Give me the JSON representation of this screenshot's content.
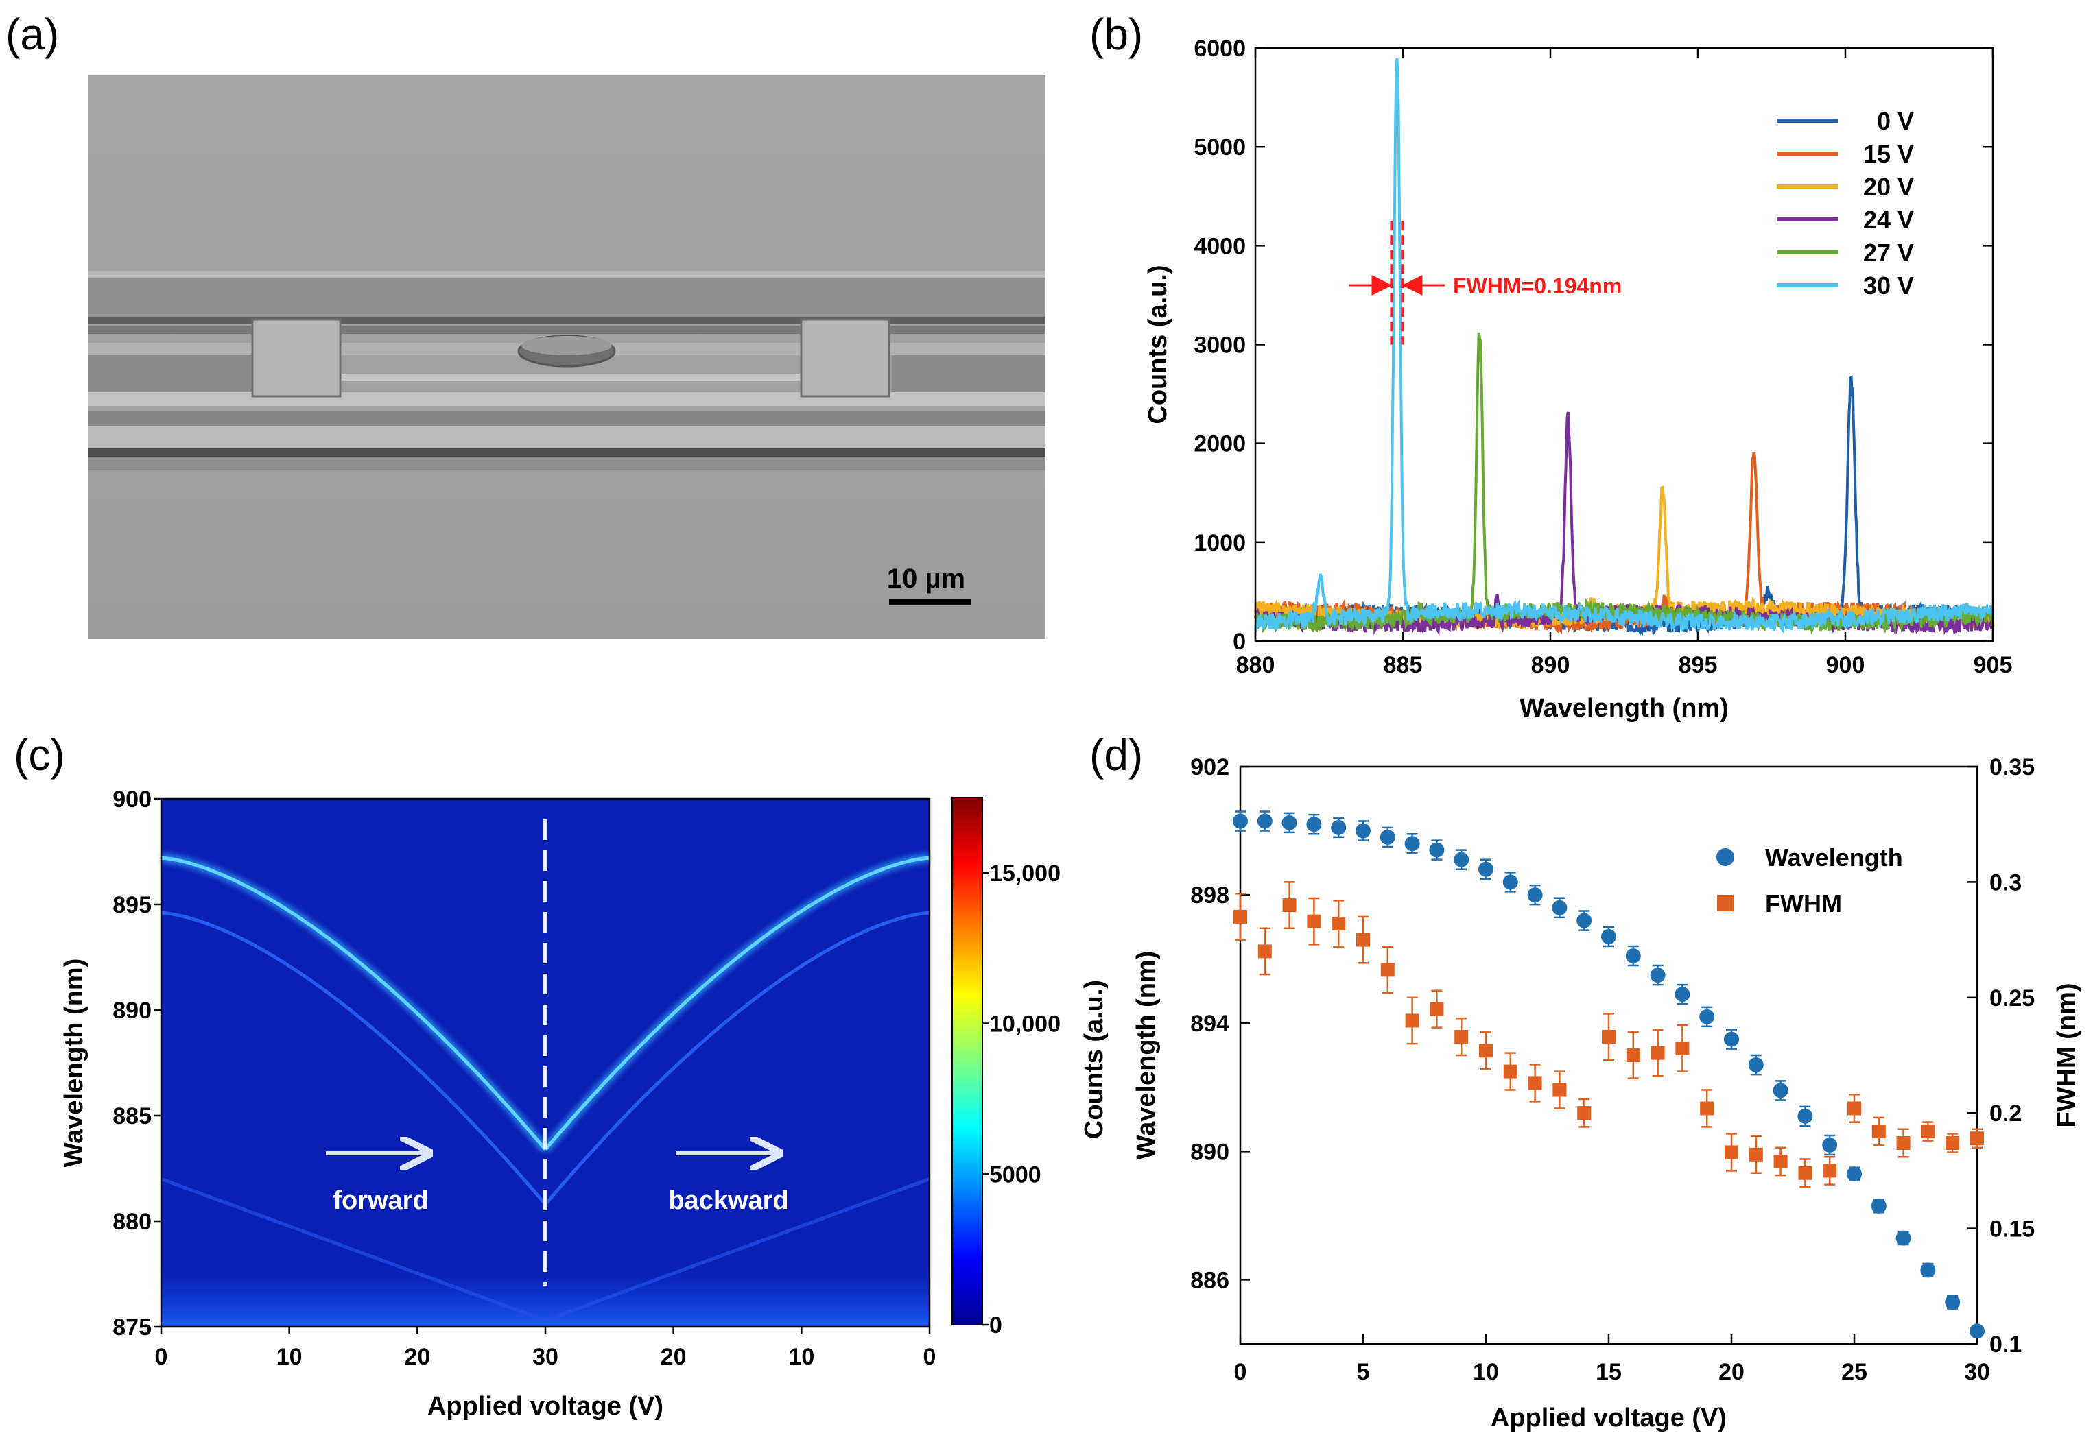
{
  "panels": {
    "a": {
      "label": "(a)",
      "scale_bar": "10 µm",
      "image": "sem-micrograph"
    },
    "b": {
      "label": "(b)"
    },
    "c": {
      "label": "(c)"
    },
    "d": {
      "label": "(d)"
    }
  },
  "chart_data": [
    {
      "id": "b",
      "type": "line",
      "title": "",
      "xlabel": "Wavelength (nm)",
      "ylabel": "Counts (a.u.)",
      "xlim": [
        880,
        905
      ],
      "ylim": [
        0,
        6000
      ],
      "xticks": [
        880,
        885,
        890,
        895,
        900,
        905
      ],
      "yticks": [
        0,
        1000,
        2000,
        3000,
        4000,
        5000,
        6000
      ],
      "legend_position": "top-right",
      "annotation": "FWHM=0.194nm",
      "series": [
        {
          "name": "0 V",
          "color": "#1f5fa8",
          "baseline": 230,
          "peaks": [
            [
              900.2,
              2600,
              0.12
            ],
            [
              897.4,
              520,
              0.12
            ]
          ]
        },
        {
          "name": "15 V",
          "color": "#e06020",
          "baseline": 250,
          "peaks": [
            [
              896.9,
              1930,
              0.11
            ],
            [
              893.9,
              420,
              0.1
            ]
          ]
        },
        {
          "name": "20 V",
          "color": "#f2b01e",
          "baseline": 270,
          "peaks": [
            [
              893.8,
              1520,
              0.1
            ],
            [
              891.4,
              420,
              0.08
            ],
            [
              882.8,
              260,
              0.2
            ]
          ]
        },
        {
          "name": "24 V",
          "color": "#7a2f9a",
          "baseline": 230,
          "peaks": [
            [
              890.6,
              2230,
              0.1
            ],
            [
              888.2,
              430,
              0.06
            ]
          ]
        },
        {
          "name": "27 V",
          "color": "#66aa33",
          "baseline": 250,
          "peaks": [
            [
              887.6,
              3100,
              0.1
            ],
            [
              885.6,
              320,
              0.15
            ]
          ]
        },
        {
          "name": "30 V",
          "color": "#4cc3f0",
          "baseline": 250,
          "peaks": [
            [
              884.8,
              5930,
              0.1
            ],
            [
              882.2,
              620,
              0.12
            ]
          ]
        }
      ]
    },
    {
      "id": "c",
      "type": "heatmap",
      "xlabel": "Applied voltage (V)",
      "ylabel": "Wavelength (nm)",
      "x_tick_labels": [
        "0",
        "10",
        "20",
        "30",
        "20",
        "10",
        "0"
      ],
      "ylim": [
        875,
        900
      ],
      "yticks": [
        875,
        880,
        885,
        890,
        895,
        900
      ],
      "colorbar_ticks": [
        0,
        5000,
        10000,
        15000
      ],
      "colorbar_tick_labels": [
        "0",
        "5000",
        "10,000",
        "15,000"
      ],
      "colorbar_max": 17500,
      "ridge_wavelength_at_0V": 897.2,
      "ridge_wavelength_at_30V": 883.4,
      "annotations": [
        "forward",
        "backward"
      ]
    },
    {
      "id": "d",
      "type": "scatter",
      "xlabel": "Applied voltage (V)",
      "ylabel_left": "Wavelength (nm)",
      "ylabel_left_prefix": "Counts (a.u.)",
      "ylabel_right": "FWHM (nm)",
      "xlim": [
        0,
        30
      ],
      "xticks": [
        0,
        5,
        10,
        15,
        20,
        25,
        30
      ],
      "ylim_left": [
        884,
        902
      ],
      "yticks_left": [
        886,
        890,
        894,
        898,
        902
      ],
      "ylim_right": [
        0.1,
        0.35
      ],
      "yticks_right": [
        0.1,
        0.15,
        0.2,
        0.25,
        0.3,
        0.35
      ],
      "yticks_right_labels": [
        "0.1",
        "0.15",
        "0.2",
        "0.25",
        "0.3",
        "0.35"
      ],
      "legend_position": "top-right",
      "x": [
        0,
        1,
        2,
        3,
        4,
        5,
        6,
        7,
        8,
        9,
        10,
        11,
        12,
        13,
        14,
        15,
        16,
        17,
        18,
        19,
        20,
        21,
        22,
        23,
        24,
        25,
        26,
        27,
        28,
        29,
        30
      ],
      "series": [
        {
          "name": "Wavelength",
          "axis": "left",
          "color": "#1f6fb0",
          "marker": "circle",
          "values": [
            900.3,
            900.3,
            900.25,
            900.2,
            900.1,
            900.0,
            899.8,
            899.6,
            899.4,
            899.1,
            898.8,
            898.4,
            898.0,
            897.6,
            897.2,
            896.7,
            896.1,
            895.5,
            894.9,
            894.2,
            893.5,
            892.7,
            891.9,
            891.1,
            890.2,
            889.3,
            888.3,
            887.3,
            886.3,
            885.3,
            884.4
          ],
          "errors": [
            0.3,
            0.3,
            0.3,
            0.3,
            0.3,
            0.3,
            0.3,
            0.3,
            0.3,
            0.3,
            0.3,
            0.3,
            0.3,
            0.3,
            0.3,
            0.3,
            0.3,
            0.3,
            0.3,
            0.3,
            0.3,
            0.3,
            0.3,
            0.3,
            0.3,
            0.2,
            0.2,
            0.2,
            0.2,
            0.2,
            0.1
          ]
        },
        {
          "name": "FWHM",
          "axis": "right",
          "color": "#e0601f",
          "marker": "square",
          "values": [
            0.285,
            0.27,
            0.29,
            0.283,
            0.282,
            0.275,
            0.262,
            0.24,
            0.245,
            0.233,
            0.227,
            0.218,
            0.213,
            0.21,
            0.2,
            0.233,
            0.225,
            0.226,
            0.228,
            0.202,
            0.183,
            0.182,
            0.179,
            0.174,
            0.175,
            0.202,
            0.192,
            0.187,
            0.192,
            0.187,
            0.189
          ],
          "errors": [
            0.01,
            0.01,
            0.01,
            0.01,
            0.01,
            0.01,
            0.01,
            0.01,
            0.008,
            0.008,
            0.008,
            0.008,
            0.008,
            0.008,
            0.006,
            0.01,
            0.01,
            0.01,
            0.01,
            0.008,
            0.008,
            0.008,
            0.006,
            0.006,
            0.006,
            0.006,
            0.006,
            0.006,
            0.004,
            0.004,
            0.004
          ]
        }
      ]
    }
  ]
}
